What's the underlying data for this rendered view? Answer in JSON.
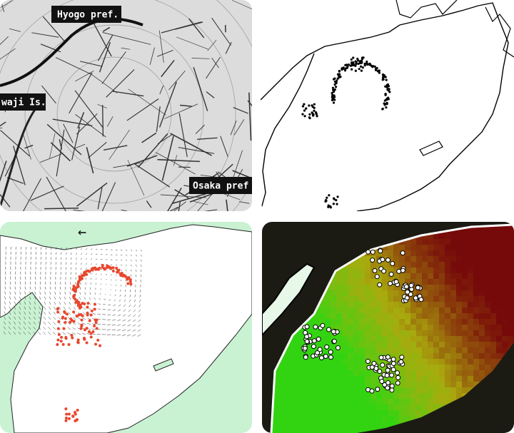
{
  "labels": {
    "hyogo": "Hyogo pref.",
    "awaji": "waji Is.",
    "osaka": "Osaka pref"
  },
  "arrow": "←"
}
